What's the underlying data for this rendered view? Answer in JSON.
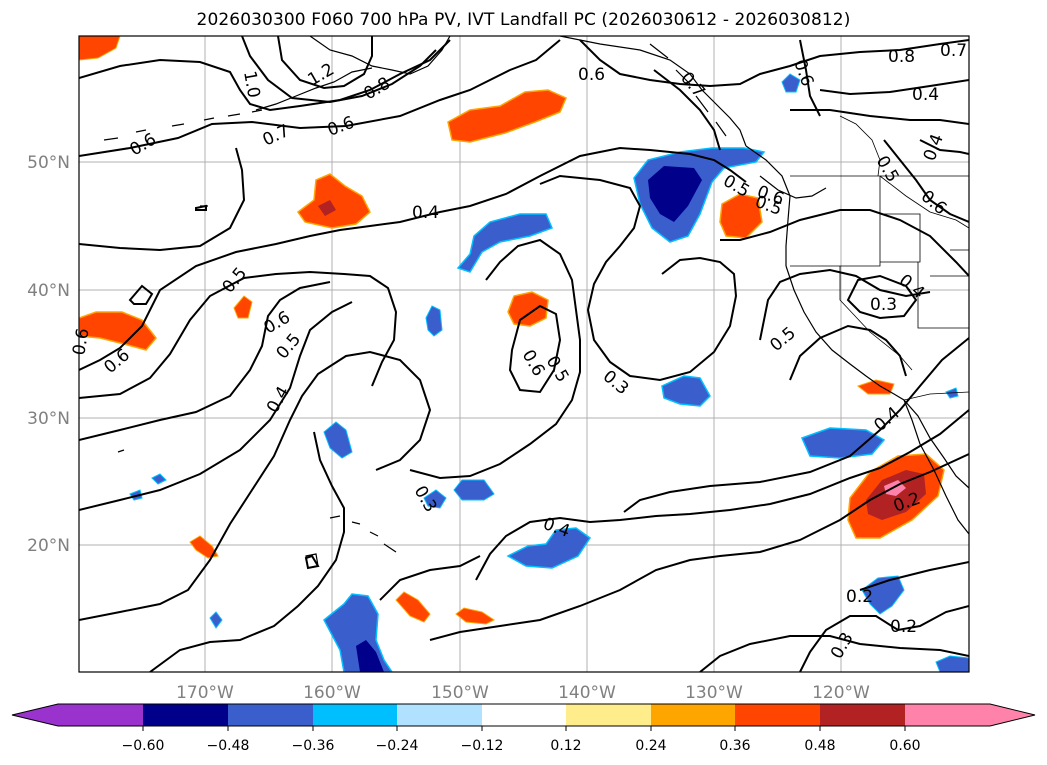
{
  "title": "2026030300 F060 700 hPa PV, IVT Landfall PC (2026030612 - 2026030812)",
  "map": {
    "lon_labels": [
      "170°W",
      "160°W",
      "150°W",
      "140°W",
      "130°W",
      "120°W"
    ],
    "lat_labels": [
      "50°N",
      "40°N",
      "30°N",
      "20°N"
    ],
    "contour_labels": [
      "1.0",
      "1.2",
      "0.8",
      "0.7",
      "0.6",
      "0.6",
      "0.6",
      "0.8",
      "0.7",
      "0.4",
      "0.6",
      "0.5",
      "0.6",
      "0.5",
      "0.5",
      "0.6",
      "0.4",
      "0.5",
      "0.6",
      "0.5",
      "0.3",
      "0.4",
      "0.3",
      "0.5",
      "0.5",
      "0.6",
      "0.6",
      "0.3",
      "0.4",
      "0.4",
      "0.2",
      "0.2",
      "0.2",
      "0.3",
      "0.4",
      "0.6",
      "0.4",
      "0.7"
    ],
    "colors": {
      "contour": "#000000",
      "grid": "#b0b0b0",
      "coast": "#000000"
    }
  },
  "colorbar": {
    "tick_labels": [
      "−0.60",
      "−0.48",
      "−0.36",
      "−0.24",
      "−0.12",
      "0.12",
      "0.24",
      "0.36",
      "0.48",
      "0.60"
    ],
    "colors": [
      "#9a32cd",
      "#00008b",
      "#3a5fcd",
      "#00bfff",
      "#b0e2ff",
      "#ffffff",
      "#ffec8b",
      "#ffa500",
      "#ff4500",
      "#b22222",
      "#ff82ab"
    ]
  }
}
